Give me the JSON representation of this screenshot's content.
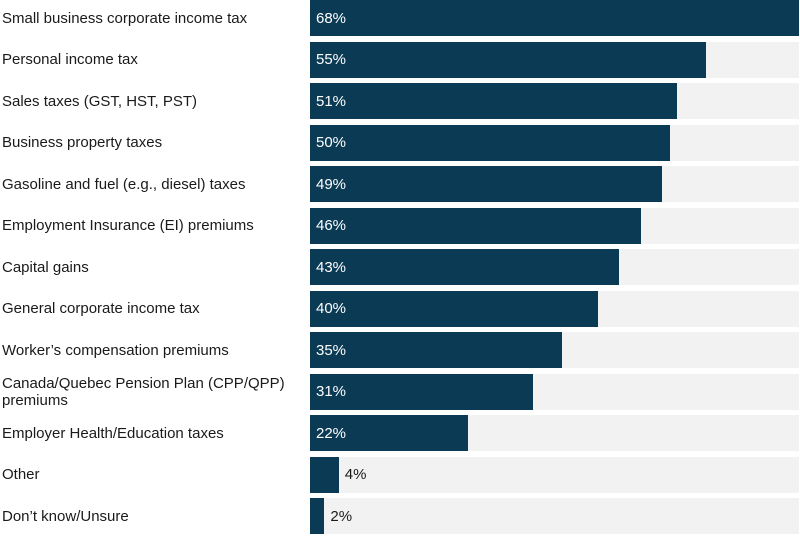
{
  "chart_data": {
    "type": "bar",
    "orientation": "horizontal",
    "value_suffix": "%",
    "xlim": [
      0,
      68
    ],
    "grid": false,
    "colors": {
      "bar": "#0b3a55",
      "track": "#f2f2f2",
      "inside_label": "#ffffff",
      "outside_label": "#1a1a1a"
    },
    "categories": [
      "Small business corporate income tax",
      "Personal income tax",
      "Sales taxes (GST, HST, PST)",
      "Business property taxes",
      "Gasoline and fuel (e.g., diesel) taxes",
      "Employment Insurance (EI) premiums",
      "Capital gains",
      "General corporate income tax",
      "Worker’s compensation premiums",
      "Canada/Quebec Pension Plan (CPP/QPP) premiums",
      "Employer Health/Education taxes",
      "Other",
      "Don’t know/Unsure"
    ],
    "values": [
      68,
      55,
      51,
      50,
      49,
      46,
      43,
      40,
      35,
      31,
      22,
      4,
      2
    ]
  }
}
